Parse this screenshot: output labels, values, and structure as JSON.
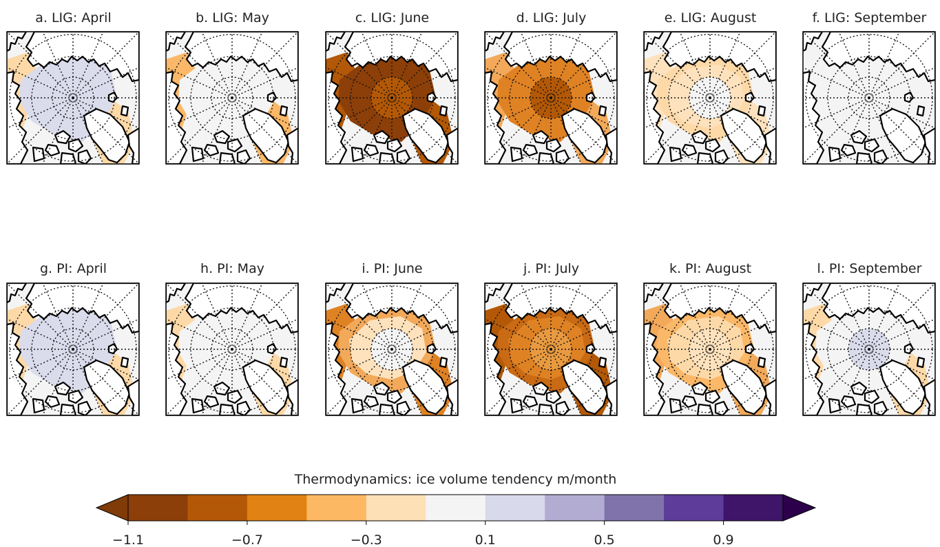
{
  "panels": [
    {
      "id": "a",
      "title": "a. LIG: April",
      "region_colors": {
        "center": "#dadcec",
        "inner": "#dadcec",
        "shelf": "#dadcec",
        "margin": "#fdd9a8"
      }
    },
    {
      "id": "b",
      "title": "b. LIG: May",
      "region_colors": {
        "center": "#f4f4f4",
        "inner": "#f4f4f4",
        "shelf": "#f4f4f4",
        "margin": "#fbb868"
      }
    },
    {
      "id": "c",
      "title": "c. LIG: June",
      "region_colors": {
        "center": "#b35806",
        "inner": "#8c3f08",
        "shelf": "#8c3f08",
        "margin": "#b35806"
      }
    },
    {
      "id": "d",
      "title": "d. LIG: July",
      "region_colors": {
        "center": "#b35806",
        "inner": "#df8224",
        "shelf": "#df8224",
        "margin": "#f2a95a"
      }
    },
    {
      "id": "e",
      "title": "e. LIG: August",
      "region_colors": {
        "center": "#f4f4f4",
        "inner": "#fee2bd",
        "shelf": "#fdd9a8",
        "margin": "#fee2bd"
      }
    },
    {
      "id": "f",
      "title": "f. LIG: September",
      "region_colors": {
        "center": "#f4f4f4",
        "inner": "#f4f4f4",
        "shelf": "#f4f4f4",
        "margin": "#f4f4f4"
      }
    },
    {
      "id": "g",
      "title": "g. PI: April",
      "region_colors": {
        "center": "#dadcec",
        "inner": "#dadcec",
        "shelf": "#dadcec",
        "margin": "#fdd9a8"
      }
    },
    {
      "id": "h",
      "title": "h. PI: May",
      "region_colors": {
        "center": "#f4f4f4",
        "inner": "#f4f4f4",
        "shelf": "#f4f4f4",
        "margin": "#fdd9a8"
      }
    },
    {
      "id": "i",
      "title": "i. PI: June",
      "region_colors": {
        "center": "#f4f4f4",
        "inner": "#fee2bd",
        "shelf": "#f2a95a",
        "margin": "#df8224"
      }
    },
    {
      "id": "j",
      "title": "j. PI: July",
      "region_colors": {
        "center": "#e99a40",
        "inner": "#df8224",
        "shelf": "#c96a14",
        "margin": "#b35806"
      }
    },
    {
      "id": "k",
      "title": "k. PI: August",
      "region_colors": {
        "center": "#fee2bd",
        "inner": "#fdd9a8",
        "shelf": "#fbb868",
        "margin": "#f2a95a"
      }
    },
    {
      "id": "l",
      "title": "l. PI: September",
      "region_colors": {
        "center": "#dadcec",
        "inner": "#f4f4f4",
        "shelf": "#f4f4f4",
        "margin": "#fdd9a8"
      }
    }
  ],
  "colorbar": {
    "title": "Thermodynamics: ice volume tendency m/month",
    "levels": [
      -1.1,
      -0.9,
      -0.7,
      -0.5,
      -0.3,
      -0.1,
      0.1,
      0.3,
      0.5,
      0.7,
      0.9,
      1.1
    ],
    "colors": [
      "#8c3f08",
      "#b35806",
      "#e08214",
      "#fdb863",
      "#fee0b6",
      "#f4f4f4",
      "#d8daeb",
      "#b2abd2",
      "#8073ac",
      "#5e3c99",
      "#3f1569"
    ],
    "extend_low_color": "#7f3b08",
    "extend_high_color": "#2d004b",
    "tick_labels": [
      "−1.1",
      "−0.7",
      "−0.3",
      "0.1",
      "0.5",
      "0.9"
    ],
    "tick_values": [
      -1.1,
      -0.7,
      -0.3,
      0.1,
      0.5,
      0.9
    ]
  },
  "map_style": {
    "land": "#ffffff",
    "ocean_background": "#f4f4f4",
    "coast": "#000000",
    "graticule": "#111111"
  }
}
